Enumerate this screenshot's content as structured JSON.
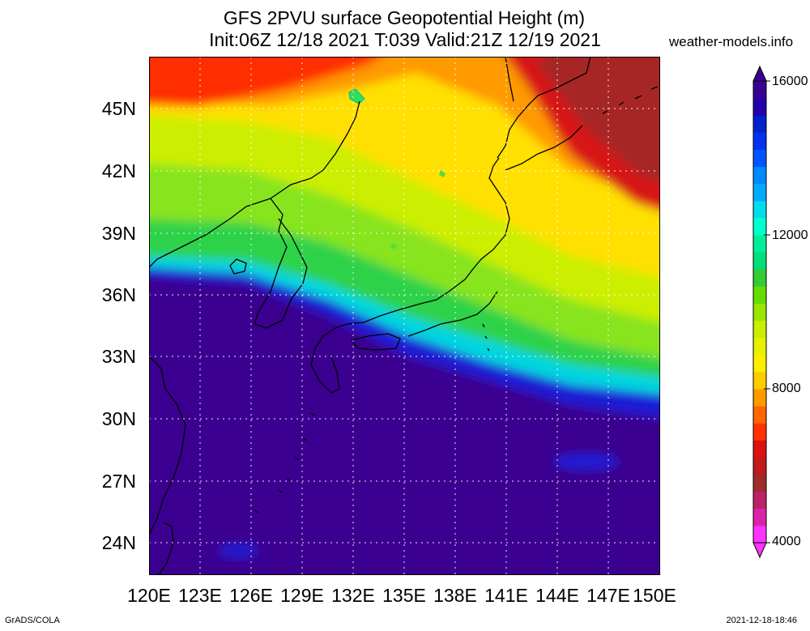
{
  "header": {
    "title_line1": "GFS 2PVU surface Geopotential Height (m)",
    "title_line2": "Init:06Z 12/18 2021 T:039 Valid:21Z 12/19 2021",
    "site": "weather-models.info"
  },
  "map": {
    "lon_ticks": [
      "120E",
      "123E",
      "126E",
      "129E",
      "132E",
      "135E",
      "138E",
      "141E",
      "144E",
      "147E",
      "150E"
    ],
    "lat_ticks": [
      "45N",
      "42N",
      "39N",
      "36N",
      "33N",
      "30N",
      "27N",
      "24N"
    ],
    "lon_range": [
      120,
      150
    ],
    "lat_range": [
      22.5,
      47.5
    ],
    "grid": true
  },
  "colorbar": {
    "labels": [
      "16000",
      "12000",
      "8000",
      "4000"
    ],
    "label_values": [
      16000,
      12000,
      8000,
      4000
    ],
    "range": [
      4000,
      16000
    ],
    "colors": [
      "#ff33ff",
      "#dd22aa",
      "#bb2266",
      "#a02b2b",
      "#c01a1a",
      "#dd1111",
      "#ff3300",
      "#ff6600",
      "#ff9900",
      "#ffcc00",
      "#ffee00",
      "#e6f000",
      "#ccee00",
      "#99e600",
      "#66dd00",
      "#33cc33",
      "#00e07a",
      "#00ee99",
      "#00ffcc",
      "#00ddee",
      "#00aaff",
      "#0088ff",
      "#0055ff",
      "#0033ee",
      "#0022cc",
      "#2200aa",
      "#3a0090"
    ]
  },
  "credits": {
    "left": "GrADS/COLA",
    "right": "2021-12-18-18:46"
  }
}
